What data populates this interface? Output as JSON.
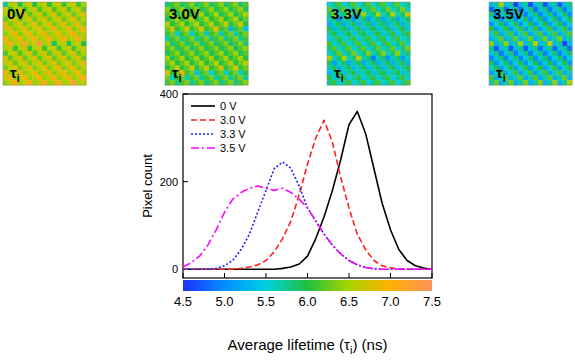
{
  "chart_data": {
    "type": "line",
    "xlabel": {
      "text": "Average lifetime (τ",
      "subscript": "i",
      "after": ") (ns)"
    },
    "ylabel": "Pixel count",
    "x": [
      4.5,
      4.6,
      4.7,
      4.8,
      4.9,
      5.0,
      5.1,
      5.2,
      5.3,
      5.4,
      5.5,
      5.6,
      5.7,
      5.8,
      5.9,
      6.0,
      6.1,
      6.2,
      6.3,
      6.4,
      6.5,
      6.6,
      6.7,
      6.8,
      6.9,
      7.0,
      7.1,
      7.2,
      7.3,
      7.4,
      7.5
    ],
    "xlim": [
      4.5,
      7.5
    ],
    "xticks": [
      4.5,
      {
        "value": 5,
        "label": "5.0"
      },
      5.5,
      {
        "value": 6,
        "label": "6.0"
      },
      6.5,
      {
        "value": 7,
        "label": "7.0"
      },
      7.5
    ],
    "ylim": [
      -20,
      400
    ],
    "yticks": [
      0,
      200,
      400
    ],
    "grid": false,
    "legend": "upper left",
    "series": [
      {
        "name": "0 V",
        "color": "#000000",
        "line_style": "solid",
        "values": [
          0,
          0,
          0,
          0,
          0,
          0,
          0,
          0,
          0,
          0,
          0,
          0,
          2,
          5,
          12,
          30,
          70,
          120,
          180,
          250,
          330,
          360,
          310,
          230,
          150,
          90,
          45,
          20,
          8,
          3,
          0
        ]
      },
      {
        "name": "3.0 V",
        "color": "#ff2020",
        "line_style": "dashed",
        "values": [
          0,
          0,
          0,
          0,
          0,
          0,
          0,
          2,
          5,
          10,
          20,
          40,
          70,
          110,
          170,
          240,
          300,
          340,
          290,
          210,
          140,
          80,
          45,
          20,
          8,
          3,
          1,
          0,
          0,
          0,
          0
        ]
      },
      {
        "name": "3.3 V",
        "color": "#2020ff",
        "line_style": "dotted",
        "values": [
          0,
          0,
          0,
          0,
          2,
          8,
          20,
          45,
          80,
          130,
          180,
          230,
          245,
          230,
          190,
          140,
          110,
          80,
          55,
          35,
          20,
          10,
          4,
          1,
          0,
          0,
          0,
          0,
          0,
          0,
          0
        ]
      },
      {
        "name": "3.5 V",
        "color": "#ff00ff",
        "line_style": "dashdot",
        "values": [
          5,
          15,
          30,
          55,
          90,
          130,
          160,
          175,
          185,
          190,
          185,
          180,
          185,
          175,
          160,
          140,
          110,
          80,
          55,
          35,
          20,
          10,
          4,
          2,
          0,
          0,
          0,
          0,
          0,
          0,
          0
        ]
      }
    ],
    "colorbar": {
      "range": [
        4.5,
        7.5
      ],
      "colors": [
        "#2030ff",
        "#0090ff",
        "#00d0e0",
        "#20c040",
        "#a8d400",
        "#ffb000",
        "#ff9060"
      ]
    },
    "panels": [
      {
        "label": "0V",
        "symbol": "τ",
        "subscript": "i"
      },
      {
        "label": "3.0V",
        "symbol": "τ",
        "subscript": "i"
      },
      {
        "label": "3.3V",
        "symbol": "τ",
        "subscript": "i"
      },
      {
        "label": "3.5V",
        "symbol": "τ",
        "subscript": "i"
      }
    ]
  }
}
